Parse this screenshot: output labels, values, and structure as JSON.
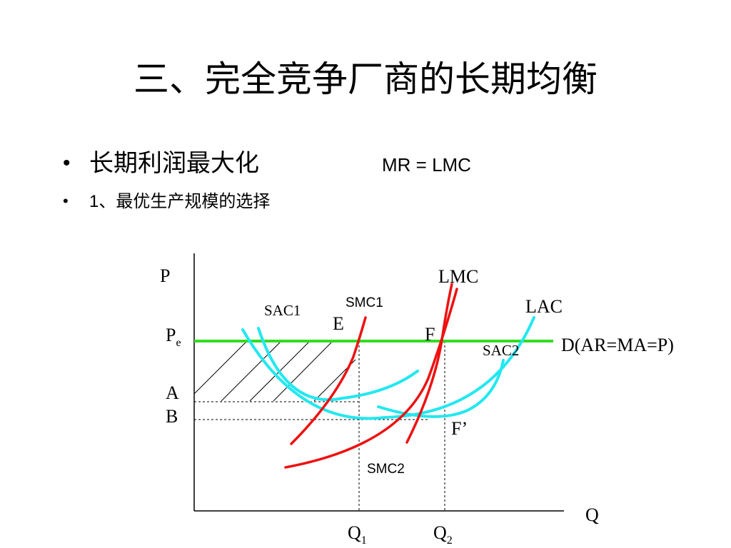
{
  "header": {
    "title": "三、完全竞争厂商的长期均衡"
  },
  "bullets": [
    {
      "text": "长期利润最大化",
      "formula": "MR = LMC"
    },
    {
      "text": "1、最优生产规模的选择"
    }
  ],
  "diagram": {
    "axis_y": "P",
    "axis_x": "Q",
    "price_label": {
      "main": "P",
      "sub": "e"
    },
    "demand": "D(AR=MA=P)",
    "level_a": "A",
    "level_b": "B",
    "curves": {
      "lmc": "LMC",
      "lac": "LAC",
      "smc1": "SMC1",
      "sac1": "SAC1",
      "smc2": "SMC2",
      "sac2": "SAC2"
    },
    "points": {
      "e": "E",
      "f": "F",
      "f_prime": "F’"
    },
    "q1": {
      "main": "Q",
      "sub": "1"
    },
    "q2": {
      "main": "Q",
      "sub": "2"
    }
  }
}
